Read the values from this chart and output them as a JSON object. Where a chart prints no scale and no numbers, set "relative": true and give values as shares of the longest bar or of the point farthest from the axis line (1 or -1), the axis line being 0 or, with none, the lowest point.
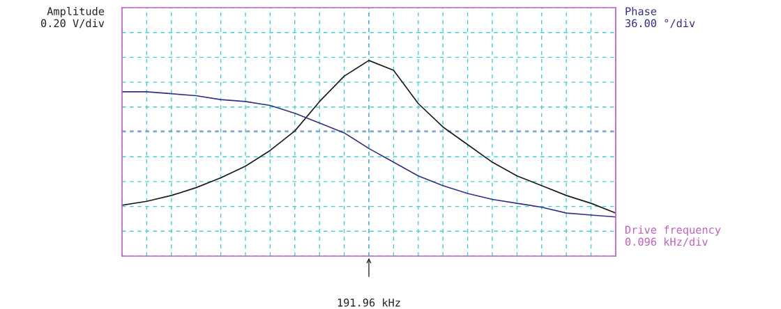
{
  "chart_data": {
    "type": "line",
    "relative": true,
    "ylabel": "Amplitude\n0.20 V/div",
    "y2label": "Phase\n36.00 °/div",
    "xlabel": "Drive frequency\n0.096 kHz/div",
    "categories": [
      null,
      null,
      null,
      null,
      null,
      null,
      null,
      null,
      null,
      null,
      null,
      null,
      null,
      null,
      null,
      null,
      null,
      null,
      null,
      null,
      null
    ],
    "grid": true,
    "line_style": "solid",
    "annotations": [
      "191.96 kHz"
    ],
    "ref_lines": [
      {
        "axis": "y",
        "value": 0.64,
        "color": "#c060c0",
        "line_style": "dashed"
      }
    ],
    "series": [
      {
        "color": "#1a1a1a",
        "values": [
          0.26,
          0.28,
          0.31,
          0.35,
          0.4,
          0.46,
          0.54,
          0.64,
          0.79,
          0.92,
          1.0,
          0.95,
          0.78,
          0.66,
          0.57,
          0.48,
          0.41,
          0.36,
          0.31,
          0.27,
          0.22
        ]
      },
      {
        "color": "#303088",
        "values": [
          0.84,
          0.84,
          0.83,
          0.82,
          0.8,
          0.79,
          0.77,
          0.73,
          0.68,
          0.63,
          0.55,
          0.48,
          0.41,
          0.36,
          0.32,
          0.29,
          0.27,
          0.25,
          0.22,
          0.21,
          0.2
        ]
      }
    ]
  }
}
